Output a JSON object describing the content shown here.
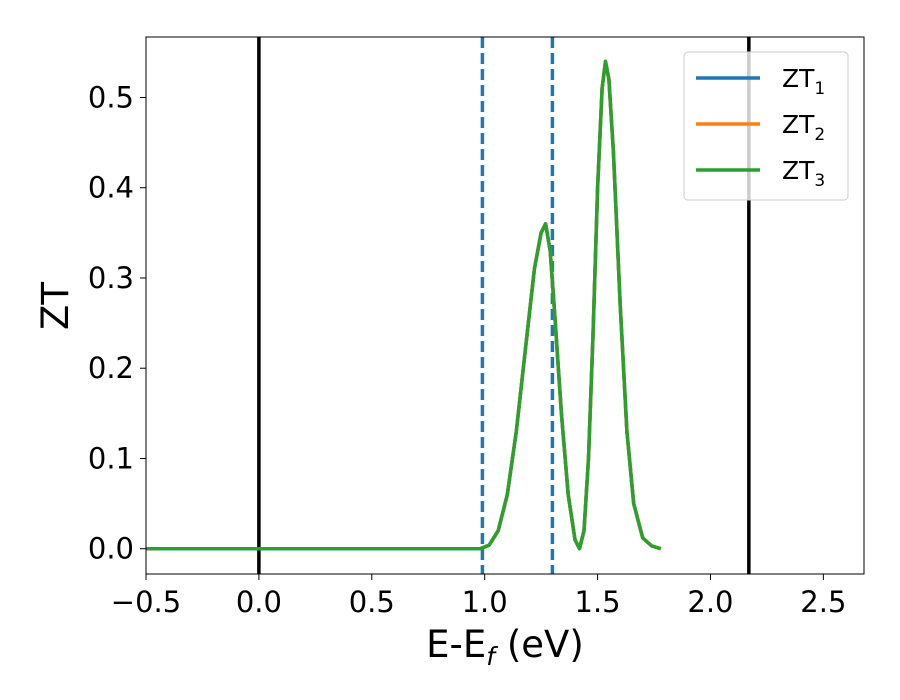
{
  "chart_data": {
    "type": "line",
    "title": "",
    "xlabel": "E-E",
    "xlabel_sub": "f",
    "xlabel_unit": " (eV)",
    "ylabel": "ZT",
    "xlim": [
      -0.5,
      2.68
    ],
    "ylim": [
      -0.028,
      0.567
    ],
    "x_ticks": [
      -0.5,
      0.0,
      0.5,
      1.0,
      1.5,
      2.0,
      2.5
    ],
    "x_tick_labels": [
      "−0.5",
      "0.0",
      "0.5",
      "1.0",
      "1.5",
      "2.0",
      "2.5"
    ],
    "y_ticks": [
      0.0,
      0.1,
      0.2,
      0.3,
      0.4,
      0.5
    ],
    "y_tick_labels": [
      "0.0",
      "0.1",
      "0.2",
      "0.3",
      "0.4",
      "0.5"
    ],
    "grid": false,
    "legend_position": "top-right",
    "vertical_lines": [
      {
        "x": 0.0,
        "style": "solid",
        "color": "#000000"
      },
      {
        "x": 2.17,
        "style": "solid",
        "color": "#000000"
      },
      {
        "x": 0.99,
        "style": "dashed",
        "color": "#1f77b4"
      },
      {
        "x": 1.3,
        "style": "dashed",
        "color": "#1f77b4"
      }
    ],
    "series": [
      {
        "name": "ZT",
        "name_sub": "1",
        "color": "#1f77b4",
        "x": [
          -0.5,
          0.0,
          0.5,
          0.98,
          1.02,
          1.06,
          1.1,
          1.14,
          1.18,
          1.22,
          1.25,
          1.27,
          1.29,
          1.31,
          1.34,
          1.37,
          1.4,
          1.42,
          1.44,
          1.46,
          1.48,
          1.5,
          1.52,
          1.535,
          1.55,
          1.57,
          1.6,
          1.63,
          1.66,
          1.7,
          1.74,
          1.78
        ],
        "y": [
          0.0,
          0.0,
          0.0,
          0.0,
          0.004,
          0.02,
          0.06,
          0.13,
          0.22,
          0.31,
          0.35,
          0.36,
          0.33,
          0.26,
          0.15,
          0.06,
          0.01,
          0.0,
          0.02,
          0.1,
          0.24,
          0.4,
          0.51,
          0.54,
          0.52,
          0.44,
          0.27,
          0.13,
          0.05,
          0.012,
          0.003,
          0.0
        ]
      },
      {
        "name": "ZT",
        "name_sub": "2",
        "color": "#ff7f0e",
        "x": [
          -0.5,
          0.0,
          0.5,
          0.98,
          1.02,
          1.06,
          1.1,
          1.14,
          1.18,
          1.22,
          1.25,
          1.27,
          1.29,
          1.31,
          1.34,
          1.37,
          1.4,
          1.42,
          1.44,
          1.46,
          1.48,
          1.5,
          1.52,
          1.535,
          1.55,
          1.57,
          1.6,
          1.63,
          1.66,
          1.7,
          1.74,
          1.78
        ],
        "y": [
          0.0,
          0.0,
          0.0,
          0.0,
          0.004,
          0.02,
          0.06,
          0.13,
          0.22,
          0.31,
          0.35,
          0.36,
          0.33,
          0.26,
          0.15,
          0.06,
          0.01,
          0.0,
          0.02,
          0.1,
          0.24,
          0.4,
          0.51,
          0.54,
          0.52,
          0.44,
          0.27,
          0.13,
          0.05,
          0.012,
          0.003,
          0.0
        ]
      },
      {
        "name": "ZT",
        "name_sub": "3",
        "color": "#2ca02c",
        "x": [
          -0.5,
          0.0,
          0.5,
          0.98,
          1.02,
          1.06,
          1.1,
          1.14,
          1.18,
          1.22,
          1.25,
          1.27,
          1.29,
          1.31,
          1.34,
          1.37,
          1.4,
          1.42,
          1.44,
          1.46,
          1.48,
          1.5,
          1.52,
          1.535,
          1.55,
          1.57,
          1.6,
          1.63,
          1.66,
          1.7,
          1.74,
          1.78
        ],
        "y": [
          0.0,
          0.0,
          0.0,
          0.0,
          0.004,
          0.02,
          0.06,
          0.13,
          0.22,
          0.31,
          0.35,
          0.36,
          0.33,
          0.26,
          0.15,
          0.06,
          0.01,
          0.0,
          0.02,
          0.1,
          0.24,
          0.4,
          0.51,
          0.54,
          0.52,
          0.44,
          0.27,
          0.13,
          0.05,
          0.012,
          0.003,
          0.0
        ]
      }
    ]
  }
}
